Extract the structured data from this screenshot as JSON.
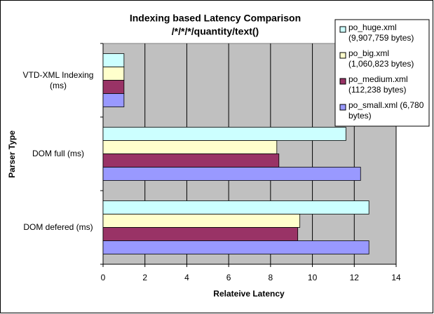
{
  "chart_data": {
    "type": "hbar",
    "title": "Indexing based Latency Comparison",
    "subtitle": "/*/*/*/quantity/text()",
    "x_label": "Relateive Latency",
    "y_label": "Parser Type",
    "categories": [
      "VTD-XML Indexing (ms)",
      "DOM full (ms)",
      "DOM defered (ms)"
    ],
    "series": [
      {
        "name": "po_huge.xml (9,907,759 bytes)",
        "color": "#ccffff",
        "values": [
          1,
          11.6,
          12.7
        ]
      },
      {
        "name": "po_big.xml (1,060,823 bytes)",
        "color": "#ffffcc",
        "values": [
          1,
          8.3,
          9.4
        ]
      },
      {
        "name": "po_medium.xml (112,238 bytes)",
        "color": "#993366",
        "values": [
          1,
          8.4,
          9.3
        ]
      },
      {
        "name": "po_small.xml (6,780 bytes)",
        "color": "#9999ff",
        "values": [
          1,
          12.3,
          12.7
        ]
      }
    ],
    "xlim": [
      0,
      14
    ],
    "xticks": [
      0,
      2,
      4,
      6,
      8,
      10,
      12,
      14
    ],
    "grid": true,
    "legend": "top-right"
  }
}
